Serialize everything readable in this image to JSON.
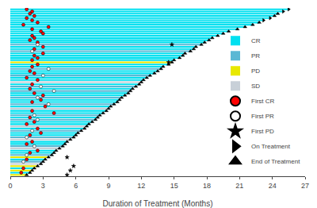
{
  "chart_data": {
    "type": "bar",
    "orientation": "horizontal",
    "xlabel": "Duration of Treatment (Months)",
    "xlim": [
      0,
      27
    ],
    "xticks": [
      0,
      3,
      6,
      9,
      12,
      15,
      18,
      21,
      24,
      27
    ],
    "grid": false,
    "legend": "lower right",
    "tick_labels": "x",
    "categories": [
      null,
      null,
      null,
      null,
      null,
      null,
      null,
      null,
      null,
      null,
      null,
      null,
      null,
      null,
      null,
      null,
      null,
      null,
      null,
      null,
      null,
      null,
      null,
      null,
      null,
      null,
      null,
      null,
      null,
      null,
      null,
      null,
      null,
      null,
      null,
      null,
      null,
      null,
      null,
      null,
      null,
      null,
      null,
      null,
      null,
      null,
      null,
      null,
      null,
      null,
      null,
      null,
      null,
      null,
      null,
      null,
      null,
      null,
      null,
      null,
      null,
      null,
      null,
      null,
      null,
      null,
      null,
      null,
      null,
      null,
      null,
      null,
      null,
      null,
      null,
      null
    ],
    "series": [
      {
        "name": "CR",
        "type": "bar",
        "color": "#00E0F0",
        "values": [
          25.5,
          25.0,
          24.5,
          24.2,
          23.8,
          23.2,
          22.8,
          22.2,
          21.5,
          20.8,
          20.0,
          19.5,
          19.0,
          18.5,
          18.2,
          17.8,
          null,
          17.0,
          16.8,
          null,
          16.0,
          15.8,
          15.5,
          15.0,
          null,
          14.5,
          14.0,
          null,
          13.5,
          13.2,
          null,
          12.5,
          12.2,
          null,
          11.8,
          null,
          11.2,
          null,
          10.8,
          10.5,
          null,
          10.0,
          9.8,
          null,
          9.2,
          null,
          8.8,
          8.5,
          null,
          8.0,
          null,
          7.5,
          7.2,
          null,
          6.8,
          null,
          6.2,
          6.0,
          null,
          null,
          5.2,
          5.0,
          null,
          null,
          4.2,
          4.0,
          null,
          null,
          3.2,
          null,
          null,
          null,
          2.2,
          null,
          1.8,
          null
        ]
      },
      {
        "name": "PR",
        "type": "bar",
        "color": "#5BB8D4",
        "values": [
          null,
          null,
          null,
          null,
          null,
          null,
          null,
          null,
          null,
          null,
          null,
          null,
          null,
          null,
          null,
          null,
          17.5,
          null,
          null,
          16.5,
          null,
          null,
          null,
          null,
          null,
          null,
          null,
          13.8,
          null,
          null,
          12.8,
          null,
          null,
          null,
          null,
          11.5,
          null,
          11.0,
          null,
          null,
          10.2,
          null,
          null,
          9.5,
          null,
          null,
          null,
          null,
          8.2,
          null,
          7.8,
          null,
          null,
          null,
          null,
          6.5,
          null,
          null,
          5.8,
          null,
          null,
          null,
          4.8,
          null,
          null,
          null,
          3.8,
          null,
          null,
          3.0,
          null,
          null,
          null,
          null,
          null,
          null
        ]
      },
      {
        "name": "PD",
        "type": "bar",
        "color": "#E8E800",
        "values": [
          null,
          null,
          null,
          null,
          null,
          null,
          null,
          null,
          null,
          null,
          null,
          null,
          null,
          null,
          null,
          null,
          null,
          null,
          null,
          null,
          null,
          null,
          null,
          null,
          14.8,
          null,
          null,
          null,
          null,
          null,
          null,
          null,
          null,
          null,
          null,
          null,
          null,
          null,
          null,
          null,
          null,
          null,
          null,
          null,
          null,
          null,
          null,
          null,
          null,
          null,
          null,
          null,
          null,
          null,
          null,
          null,
          null,
          null,
          null,
          null,
          null,
          null,
          null,
          null,
          null,
          null,
          null,
          3.5,
          null,
          null,
          null,
          2.5,
          null,
          2.0,
          null,
          1.5
        ]
      },
      {
        "name": "SD",
        "type": "bar",
        "color": "#C8D0D8",
        "values": [
          null,
          null,
          null,
          null,
          null,
          null,
          null,
          null,
          null,
          null,
          null,
          null,
          null,
          null,
          null,
          null,
          null,
          null,
          null,
          null,
          null,
          null,
          null,
          null,
          null,
          null,
          null,
          null,
          null,
          null,
          null,
          null,
          null,
          12.0,
          null,
          null,
          null,
          null,
          null,
          null,
          null,
          null,
          null,
          null,
          null,
          9.0,
          null,
          null,
          null,
          null,
          null,
          null,
          null,
          7.0,
          null,
          null,
          null,
          null,
          null,
          5.5,
          null,
          null,
          null,
          4.5,
          null,
          null,
          null,
          null,
          null,
          null,
          2.8,
          null,
          null,
          null,
          null,
          null
        ]
      },
      {
        "name": "First CR",
        "type": "scatter",
        "marker": "circle",
        "color": "red",
        "values": [
          1.5,
          2.0,
          1.8,
          2.2,
          1.5,
          2.0,
          2.5,
          1.2,
          3.5,
          2.0,
          2.8,
          3.0,
          2.0,
          2.2,
          1.8,
          2.5,
          null,
          3.0,
          2.2,
          null,
          3.0,
          2.2,
          2.5,
          2.0,
          null,
          2.5,
          2.0,
          null,
          1.8,
          2.2,
          null,
          1.5,
          2.5,
          null,
          2.0,
          null,
          1.8,
          null,
          2.2,
          3.0,
          null,
          2.8,
          2.0,
          null,
          3.2,
          null,
          2.0,
          4.0,
          null,
          1.8,
          null,
          2.2,
          1.5,
          null,
          2.5,
          null,
          2.8,
          1.8,
          null,
          null,
          2.0,
          1.5,
          null,
          null,
          2.5,
          1.8,
          null,
          null,
          1.5,
          null,
          null,
          null,
          1.2,
          null,
          1.0,
          null
        ]
      },
      {
        "name": "First PR",
        "type": "scatter",
        "marker": "circle",
        "color": "white",
        "values": [
          null,
          null,
          null,
          null,
          null,
          null,
          null,
          null,
          null,
          null,
          null,
          null,
          null,
          null,
          null,
          null,
          2.5,
          null,
          null,
          2.0,
          null,
          null,
          null,
          null,
          null,
          null,
          null,
          3.5,
          null,
          null,
          3.0,
          null,
          null,
          null,
          null,
          2.8,
          null,
          4.0,
          null,
          null,
          2.5,
          null,
          null,
          3.5,
          null,
          null,
          null,
          null,
          2.2,
          null,
          2.5,
          null,
          null,
          null,
          null,
          2.0,
          null,
          null,
          1.5,
          null,
          null,
          null,
          2.2,
          null,
          null,
          null,
          1.5,
          null,
          null,
          1.2,
          null,
          null,
          null,
          null,
          null,
          null
        ]
      },
      {
        "name": "First PD",
        "type": "scatter",
        "marker": "star",
        "color": "black",
        "values": [
          null,
          null,
          null,
          null,
          null,
          null,
          null,
          null,
          null,
          null,
          null,
          null,
          null,
          null,
          null,
          null,
          14.8,
          null,
          null,
          null,
          null,
          null,
          null,
          null,
          14.5,
          null,
          null,
          null,
          null,
          null,
          null,
          null,
          null,
          null,
          null,
          null,
          null,
          null,
          null,
          null,
          null,
          null,
          null,
          null,
          null,
          null,
          null,
          null,
          null,
          null,
          null,
          null,
          null,
          null,
          null,
          null,
          null,
          null,
          null,
          null,
          null,
          null,
          null,
          null,
          null,
          null,
          null,
          5.2,
          null,
          null,
          null,
          5.8,
          null,
          5.5,
          null,
          5.2
        ]
      },
      {
        "name": "On Treatment",
        "type": "scatter",
        "marker": "triangle-right",
        "color": "black",
        "values": [
          25.5,
          25.0,
          null,
          null,
          23.8,
          23.2,
          null,
          null,
          null,
          null,
          null,
          null,
          null,
          null,
          null,
          null,
          null,
          null,
          null,
          null,
          null,
          null,
          null,
          null,
          null,
          null,
          null,
          null,
          null,
          null,
          null,
          null,
          null,
          null,
          null,
          null,
          null,
          null,
          null,
          null,
          null,
          null,
          null,
          null,
          null,
          null,
          null,
          null,
          null,
          null,
          null,
          null,
          null,
          null,
          null,
          null,
          null,
          null,
          null,
          null,
          null,
          null,
          null,
          null,
          null,
          null,
          null,
          null,
          null,
          null,
          null,
          null,
          null,
          null,
          null,
          null
        ]
      },
      {
        "name": "End of Treatment",
        "type": "scatter",
        "marker": "triangle-up",
        "color": "black",
        "values": [
          null,
          null,
          24.5,
          24.2,
          null,
          null,
          22.8,
          22.2,
          21.5,
          20.8,
          20.0,
          19.5,
          19.0,
          18.5,
          18.2,
          17.8,
          17.5,
          17.0,
          16.8,
          16.5,
          16.0,
          15.8,
          15.5,
          15.0,
          14.8,
          14.5,
          14.0,
          13.8,
          13.5,
          13.2,
          12.8,
          12.5,
          12.2,
          12.0,
          11.8,
          11.5,
          11.2,
          11.0,
          10.8,
          10.5,
          10.2,
          10.0,
          9.8,
          9.5,
          9.2,
          9.0,
          8.8,
          8.5,
          8.2,
          8.0,
          7.8,
          7.5,
          7.2,
          7.0,
          6.8,
          6.5,
          6.2,
          6.0,
          5.8,
          5.5,
          5.2,
          5.0,
          4.8,
          4.5,
          4.2,
          4.0,
          3.8,
          3.5,
          3.2,
          3.0,
          2.8,
          2.5,
          2.2,
          2.0,
          1.8,
          1.5
        ]
      }
    ]
  }
}
